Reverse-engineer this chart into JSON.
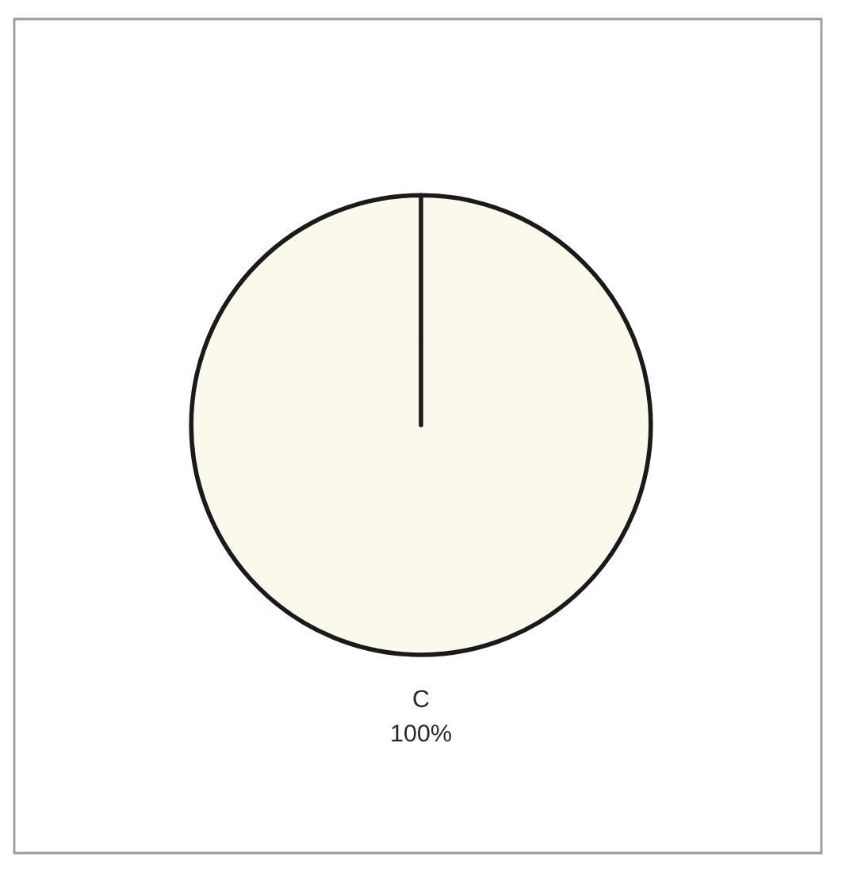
{
  "chart_data": {
    "type": "pie",
    "categories": [
      "C"
    ],
    "values": [
      100
    ],
    "value_labels": [
      "100%"
    ],
    "colors": [
      "#fbf8ec"
    ]
  }
}
